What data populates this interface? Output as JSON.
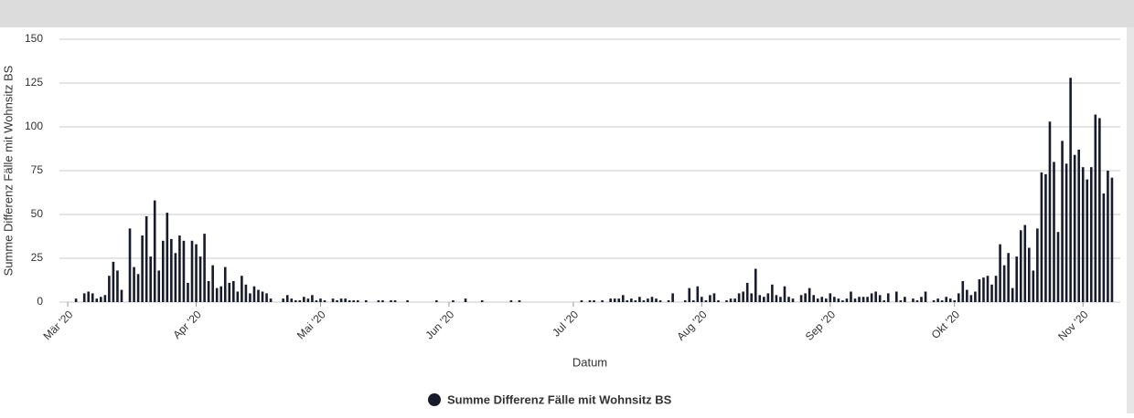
{
  "chart_data": {
    "type": "bar",
    "y_label": "Summe Differenz Fälle mit Wohnsitz BS",
    "x_label": "Datum",
    "color": "#171b2b",
    "grid": true,
    "series": [
      {
        "name": "Summe Differenz Fälle mit Wohnsitz BS",
        "color": "#171b2b"
      }
    ],
    "ylim": [
      0,
      150
    ],
    "yticks": [
      0,
      25,
      50,
      75,
      100,
      125,
      150
    ],
    "xlim": [
      -2,
      254
    ],
    "xticks": [
      {
        "value": 0,
        "label": "Mär '20"
      },
      {
        "value": 31,
        "label": "Apr '20"
      },
      {
        "value": 61,
        "label": "Mai '20"
      },
      {
        "value": 92,
        "label": "Jun '20"
      },
      {
        "value": 122,
        "label": "Jul '20"
      },
      {
        "value": 153,
        "label": "Aug '20"
      },
      {
        "value": 184,
        "label": "Sep '20"
      },
      {
        "value": 214,
        "label": "Okt '20"
      },
      {
        "value": 245,
        "label": "Nov '20"
      }
    ],
    "x": [
      2,
      3,
      4,
      5,
      6,
      7,
      8,
      9,
      10,
      11,
      12,
      13,
      14,
      15,
      16,
      17,
      18,
      19,
      20,
      21,
      22,
      23,
      24,
      25,
      26,
      27,
      28,
      29,
      30,
      31,
      32,
      33,
      34,
      35,
      36,
      37,
      38,
      39,
      40,
      41,
      42,
      43,
      44,
      45,
      46,
      47,
      48,
      49,
      50,
      51,
      52,
      53,
      54,
      55,
      56,
      57,
      58,
      59,
      60,
      61,
      62,
      63,
      64,
      65,
      66,
      67,
      68,
      69,
      70,
      71,
      72,
      73,
      74,
      75,
      76,
      77,
      78,
      79,
      80,
      81,
      82,
      83,
      84,
      85,
      86,
      87,
      88,
      89,
      90,
      91,
      92,
      93,
      94,
      95,
      96,
      97,
      98,
      99,
      100,
      101,
      102,
      103,
      104,
      105,
      106,
      107,
      108,
      109,
      110,
      111,
      112,
      113,
      114,
      115,
      116,
      117,
      118,
      119,
      120,
      121,
      122,
      123,
      124,
      125,
      126,
      127,
      128,
      129,
      130,
      131,
      132,
      133,
      134,
      135,
      136,
      137,
      138,
      139,
      140,
      141,
      142,
      143,
      144,
      145,
      146,
      147,
      148,
      149,
      150,
      151,
      152,
      153,
      154,
      155,
      156,
      157,
      158,
      159,
      160,
      161,
      162,
      163,
      164,
      165,
      166,
      167,
      168,
      169,
      170,
      171,
      172,
      173,
      174,
      175,
      176,
      177,
      178,
      179,
      180,
      181,
      182,
      183,
      184,
      185,
      186,
      187,
      188,
      189,
      190,
      191,
      192,
      193,
      194,
      195,
      196,
      197,
      198,
      199,
      200,
      201,
      202,
      203,
      204,
      205,
      206,
      207,
      208,
      209,
      210,
      211,
      212,
      213,
      214,
      215,
      216,
      217,
      218,
      219,
      220,
      221,
      222,
      223,
      224,
      225,
      226,
      227,
      228,
      229,
      230,
      231,
      232,
      233,
      234,
      235,
      236,
      237,
      238,
      239,
      240,
      241,
      242,
      243,
      244,
      245,
      246,
      247,
      248,
      249,
      250,
      251,
      252
    ],
    "values": [
      2,
      0,
      5,
      6,
      5,
      2,
      3,
      4,
      15,
      23,
      18,
      7,
      0,
      42,
      20,
      16,
      38,
      49,
      26,
      58,
      18,
      35,
      51,
      36,
      28,
      38,
      35,
      11,
      35,
      33,
      26,
      39,
      12,
      21,
      8,
      9,
      20,
      11,
      12,
      6,
      15,
      10,
      5,
      9,
      7,
      6,
      5,
      2,
      0,
      0,
      2,
      4,
      2,
      1,
      1,
      3,
      2,
      4,
      1,
      2,
      1,
      0,
      2,
      1,
      2,
      2,
      1,
      1,
      1,
      0,
      1,
      0,
      0,
      1,
      1,
      0,
      1,
      1,
      0,
      0,
      1,
      0,
      0,
      0,
      0,
      0,
      0,
      1,
      0,
      0,
      0,
      1,
      0,
      0,
      2,
      0,
      0,
      0,
      1,
      0,
      0,
      0,
      0,
      0,
      0,
      1,
      0,
      1,
      0,
      0,
      0,
      0,
      0,
      0,
      0,
      0,
      0,
      0,
      0,
      0,
      0,
      0,
      1,
      0,
      1,
      1,
      0,
      1,
      0,
      2,
      2,
      2,
      4,
      1,
      2,
      1,
      3,
      1,
      2,
      3,
      2,
      1,
      0,
      1,
      5,
      0,
      0,
      1,
      8,
      1,
      9,
      3,
      1,
      4,
      5,
      1,
      0,
      1,
      2,
      2,
      5,
      6,
      11,
      5,
      19,
      4,
      3,
      5,
      10,
      4,
      3,
      9,
      3,
      2,
      0,
      4,
      5,
      8,
      4,
      2,
      3,
      2,
      5,
      3,
      2,
      1,
      2,
      6,
      2,
      3,
      3,
      3,
      5,
      6,
      4,
      1,
      5,
      0,
      6,
      1,
      3,
      0,
      2,
      1,
      3,
      6,
      0,
      1,
      2,
      1,
      3,
      2,
      1,
      5,
      12,
      7,
      4,
      6,
      13,
      14,
      15,
      10,
      15,
      33,
      21,
      28,
      8,
      26,
      41,
      44,
      31,
      18,
      42,
      74,
      73,
      103,
      80,
      40,
      92,
      79,
      128,
      84,
      87,
      77,
      70,
      77,
      107,
      105,
      62,
      75,
      71
    ]
  }
}
